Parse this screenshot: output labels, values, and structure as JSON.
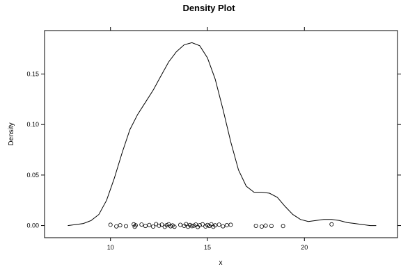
{
  "chart_data": {
    "type": "line",
    "title": "Density Plot",
    "xlabel": "x",
    "ylabel": "Density",
    "xlim": [
      6.6,
      24.8
    ],
    "ylim": [
      -0.012,
      0.193
    ],
    "xticks": [
      10,
      15,
      20
    ],
    "yticks": [
      0.0,
      0.05,
      0.1,
      0.15
    ],
    "ytick_labels": [
      "0.00",
      "0.05",
      "0.10",
      "0.15"
    ],
    "grid": false,
    "series": [
      {
        "type": "line",
        "x": [
          7.8,
          8.2,
          8.6,
          9.0,
          9.4,
          9.8,
          10.2,
          10.6,
          11.0,
          11.4,
          11.8,
          12.2,
          12.6,
          13.0,
          13.4,
          13.8,
          14.2,
          14.6,
          15.0,
          15.4,
          15.8,
          16.2,
          16.6,
          17.0,
          17.4,
          17.8,
          18.2,
          18.6,
          19.0,
          19.4,
          19.8,
          20.2,
          20.6,
          21.0,
          21.4,
          21.8,
          22.2,
          22.6,
          23.0,
          23.4,
          23.7
        ],
        "y": [
          0.0,
          0.001,
          0.002,
          0.005,
          0.011,
          0.025,
          0.047,
          0.072,
          0.095,
          0.11,
          0.122,
          0.134,
          0.148,
          0.162,
          0.172,
          0.179,
          0.181,
          0.178,
          0.166,
          0.145,
          0.115,
          0.083,
          0.055,
          0.039,
          0.033,
          0.033,
          0.032,
          0.028,
          0.019,
          0.011,
          0.006,
          0.004,
          0.005,
          0.006,
          0.006,
          0.005,
          0.003,
          0.002,
          0.001,
          0.0,
          0.0
        ]
      },
      {
        "type": "scatter",
        "marker": "open-circle",
        "x": [
          10.0,
          10.3,
          10.5,
          10.8,
          11.2,
          11.25,
          11.3,
          11.6,
          11.8,
          12.0,
          12.2,
          12.35,
          12.5,
          12.65,
          12.8,
          12.9,
          13.0,
          13.1,
          13.2,
          13.3,
          13.6,
          13.8,
          13.9,
          14.0,
          14.1,
          14.2,
          14.3,
          14.4,
          14.5,
          14.6,
          14.75,
          14.9,
          15.0,
          15.1,
          15.2,
          15.3,
          15.4,
          15.6,
          15.8,
          16.0,
          16.2,
          17.5,
          17.8,
          18.0,
          18.3,
          18.9,
          21.4
        ],
        "y": [
          0.0008,
          -0.0008,
          0.0003,
          -0.0006,
          0.0012,
          -0.0012,
          0.0002,
          0.001,
          -0.0004,
          0.0006,
          -0.001,
          0.0014,
          -0.0002,
          0.0009,
          -0.0013,
          0.0004,
          0.0013,
          -0.0007,
          0.0001,
          -0.0011,
          0.0007,
          -0.0003,
          0.0014,
          -0.0012,
          0.0005,
          -0.0006,
          0.0,
          0.001,
          -0.0014,
          0.0003,
          0.0012,
          -0.0009,
          0.0006,
          -0.0004,
          0.0013,
          -0.0012,
          0.0002,
          0.0009,
          -0.0007,
          0.0004,
          0.0008,
          -0.0003,
          -0.001,
          0.0,
          -0.0004,
          -0.0005,
          0.0012
        ]
      }
    ]
  }
}
